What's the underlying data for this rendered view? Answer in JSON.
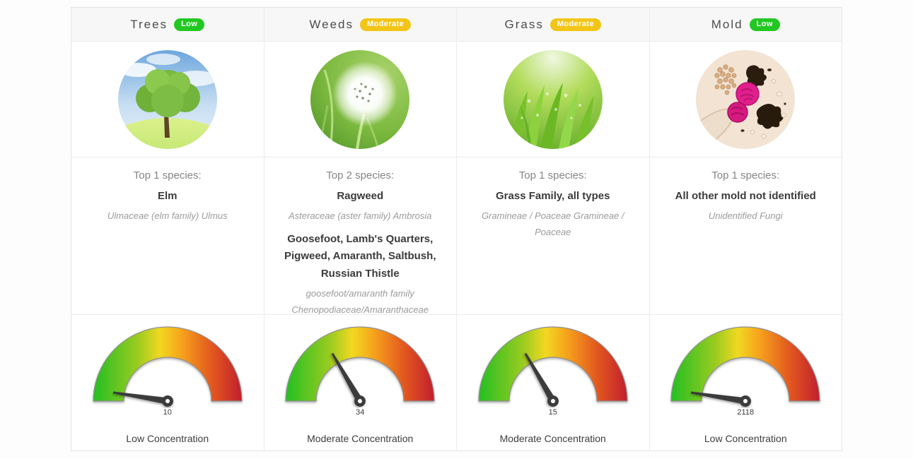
{
  "theme": {
    "level_colors": {
      "Low": "#22c822",
      "Moderate": "#f2c517"
    }
  },
  "columns": [
    {
      "name": "Trees",
      "level": "Low",
      "species_heading": "Top 1 species:",
      "species": [
        {
          "name": "Elm",
          "latin": "Ulmaceae (elm family) Ulmus"
        }
      ],
      "gauge": {
        "value": "10",
        "needle_rotation": 9,
        "label": "Low Concentration"
      }
    },
    {
      "name": "Weeds",
      "level": "Moderate",
      "species_heading": "Top 2 species:",
      "species": [
        {
          "name": "Ragweed",
          "latin": "Asteraceae (aster family) Ambrosia"
        },
        {
          "name": "Goosefoot, Lamb's Quarters, Pigweed, Amaranth, Saltbush, Russian Thistle",
          "latin": "goosefoot/amaranth family Chenopodiaceae/Amaranthaceae"
        }
      ],
      "gauge": {
        "value": "34",
        "needle_rotation": 60,
        "label": "Moderate Concentration"
      }
    },
    {
      "name": "Grass",
      "level": "Moderate",
      "species_heading": "Top 1 species:",
      "species": [
        {
          "name": "Grass Family, all types",
          "latin": "Gramineae / Poaceae Gramineae / Poaceae"
        }
      ],
      "gauge": {
        "value": "15",
        "needle_rotation": 60,
        "label": "Moderate Concentration"
      }
    },
    {
      "name": "Mold",
      "level": "Low",
      "species_heading": "Top 1 species:",
      "species": [
        {
          "name": "All other mold not identified",
          "latin": "Unidentified Fungi"
        }
      ],
      "gauge": {
        "value": "2118",
        "needle_rotation": 9,
        "label": "Low Concentration"
      }
    }
  ]
}
